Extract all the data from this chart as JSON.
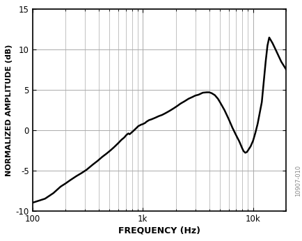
{
  "title": "",
  "xlabel": "FREQUENCY (Hz)",
  "ylabel": "NORMALIZED AMPLITUDE (dB)",
  "xlim": [
    100,
    20000
  ],
  "ylim": [
    -10,
    15
  ],
  "yticks": [
    -10,
    -5,
    0,
    5,
    10,
    15
  ],
  "watermark": "10907-010",
  "line_color": "#000000",
  "line_width": 1.8,
  "bg_color": "#ffffff",
  "grid_color": "#aaaaaa",
  "freq_data": [
    100,
    130,
    155,
    180,
    200,
    220,
    250,
    280,
    310,
    350,
    390,
    430,
    470,
    510,
    550,
    600,
    640,
    680,
    710,
    740,
    760,
    790,
    820,
    850,
    880,
    910,
    940,
    970,
    1000,
    1050,
    1080,
    1110,
    1140,
    1170,
    1200,
    1250,
    1300,
    1400,
    1500,
    1600,
    1700,
    1800,
    1900,
    2000,
    2100,
    2200,
    2400,
    2600,
    2800,
    3000,
    3200,
    3500,
    3800,
    4000,
    4200,
    4500,
    4800,
    5000,
    5500,
    6000,
    6500,
    7000,
    7500,
    8000,
    8200,
    8500,
    8800,
    9000,
    9500,
    10000,
    10500,
    11000,
    12000,
    13000,
    13500,
    14000,
    15000,
    16000,
    18000,
    20000
  ],
  "amp_data": [
    -9.0,
    -8.5,
    -7.8,
    -7.0,
    -6.6,
    -6.2,
    -5.7,
    -5.3,
    -4.9,
    -4.3,
    -3.8,
    -3.3,
    -2.9,
    -2.5,
    -2.1,
    -1.6,
    -1.2,
    -0.9,
    -0.6,
    -0.4,
    -0.5,
    -0.3,
    -0.1,
    0.1,
    0.3,
    0.5,
    0.6,
    0.7,
    0.75,
    0.9,
    1.05,
    1.15,
    1.25,
    1.3,
    1.35,
    1.45,
    1.55,
    1.75,
    1.9,
    2.1,
    2.3,
    2.5,
    2.7,
    2.9,
    3.1,
    3.3,
    3.6,
    3.9,
    4.1,
    4.3,
    4.4,
    4.65,
    4.7,
    4.7,
    4.6,
    4.35,
    3.9,
    3.5,
    2.5,
    1.4,
    0.3,
    -0.6,
    -1.4,
    -2.3,
    -2.6,
    -2.8,
    -2.7,
    -2.5,
    -2.0,
    -1.3,
    -0.3,
    0.8,
    3.5,
    8.5,
    10.5,
    11.5,
    10.8,
    10.0,
    8.5,
    7.5
  ]
}
